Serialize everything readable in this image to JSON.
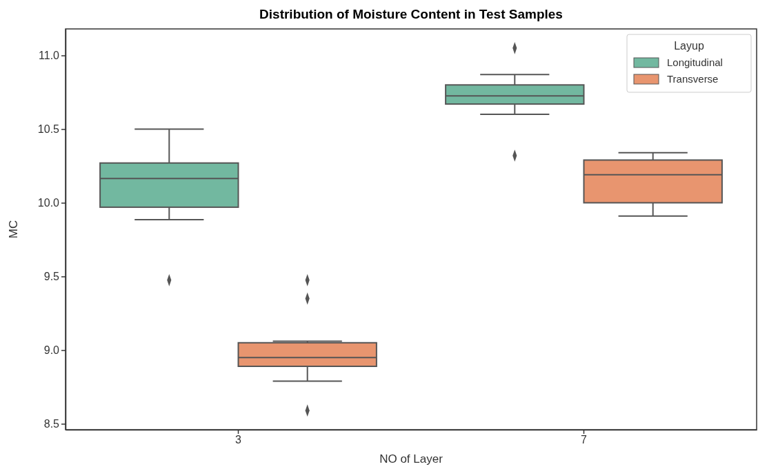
{
  "chart_data": {
    "type": "box",
    "title": "Distribution of Moisture Content in Test Samples",
    "xlabel": "NO of Layer",
    "ylabel": "MC",
    "legend_title": "Layup",
    "legend": "top right",
    "marker": "diamond",
    "grid": false,
    "categories": [
      "3",
      "7"
    ],
    "ylim": [
      8.46,
      11.18
    ],
    "yticks": [
      {
        "value": 8.5,
        "label": "8.5"
      },
      {
        "value": 9,
        "label": "9.0"
      },
      {
        "value": 9.5,
        "label": "9.5"
      },
      {
        "value": 10,
        "label": "10.0"
      },
      {
        "value": 10.5,
        "label": "10.5"
      },
      {
        "value": 11,
        "label": "11.0"
      }
    ],
    "series": [
      {
        "name": "Longitudinal",
        "color": "#72b8a0",
        "boxes": [
          {
            "low": 9.885,
            "q1": 9.97,
            "median": 10.165,
            "q3": 10.27,
            "high": 10.5,
            "outliers": [
              9.475
            ]
          },
          {
            "low": 10.6,
            "q1": 10.67,
            "median": 10.725,
            "q3": 10.8,
            "high": 10.87,
            "outliers": [
              11.05,
              10.32
            ]
          }
        ]
      },
      {
        "name": "Transverse",
        "color": "#e8956f",
        "boxes": [
          {
            "low": 8.79,
            "q1": 8.89,
            "median": 8.95,
            "q3": 9.05,
            "high": 9.06,
            "outliers": [
              9.475,
              9.35,
              8.59
            ]
          },
          {
            "low": 9.91,
            "q1": 10,
            "median": 10.19,
            "q3": 10.29,
            "high": 10.34
          }
        ]
      }
    ]
  }
}
